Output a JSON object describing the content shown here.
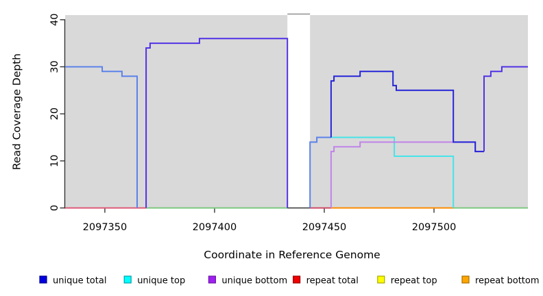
{
  "chart_data": {
    "type": "line",
    "title": "",
    "xlabel": "Coordinate in Reference Genome",
    "ylabel": "Read Coverage Depth",
    "xlim": [
      2097331.9,
      2097542.8
    ],
    "ylim": [
      0,
      41
    ],
    "grid": false,
    "legend_position": "bottom",
    "x_ticks": [
      2097350,
      2097400,
      2097450,
      2097500
    ],
    "y_ticks": [
      0,
      10,
      20,
      30,
      40
    ],
    "masked_region": [
      2097433,
      2097444
    ],
    "colors": {
      "plot_bg": "#d9d9d9",
      "axis": "#333333",
      "mask_fill": "#ffffff",
      "mask_border": "#8f8f8f"
    },
    "series": [
      {
        "name": "unique total",
        "color": "#0000e0",
        "steps": [
          [
            2097332,
            30
          ],
          [
            2097349,
            29
          ],
          [
            2097358,
            28
          ],
          [
            2097365,
            0
          ],
          [
            2097369,
            34
          ],
          [
            2097371,
            35
          ],
          [
            2097393,
            36
          ],
          [
            2097433,
            0
          ],
          [
            2097444,
            14
          ],
          [
            2097447,
            15
          ],
          [
            2097453,
            27
          ],
          [
            2097454,
            28
          ],
          [
            2097466,
            29
          ],
          [
            2097481,
            26
          ],
          [
            2097483,
            25
          ],
          [
            2097509,
            14
          ],
          [
            2097519,
            12
          ],
          [
            2097523,
            28
          ],
          [
            2097526,
            29
          ],
          [
            2097531,
            30
          ],
          [
            2097543,
            30
          ]
        ]
      },
      {
        "name": "unique top",
        "color": "#00ffff",
        "steps": [
          [
            2097332,
            30
          ],
          [
            2097349,
            29
          ],
          [
            2097358,
            28
          ],
          [
            2097365,
            0
          ],
          [
            2097444,
            14
          ],
          [
            2097447,
            15
          ],
          [
            2097481,
            12
          ],
          [
            2097483,
            11
          ],
          [
            2097509,
            0
          ],
          [
            2097543,
            0
          ]
        ]
      },
      {
        "name": "unique bottom",
        "color": "#a020f0",
        "steps": [
          [
            2097332,
            0
          ],
          [
            2097369,
            34
          ],
          [
            2097371,
            35
          ],
          [
            2097393,
            36
          ],
          [
            2097433,
            0
          ],
          [
            2097453,
            12
          ],
          [
            2097454,
            13
          ],
          [
            2097466,
            14
          ],
          [
            2097519,
            12
          ],
          [
            2097523,
            28
          ],
          [
            2097526,
            29
          ],
          [
            2097531,
            30
          ],
          [
            2097543,
            30
          ]
        ]
      },
      {
        "name": "repeat total",
        "color": "#f00000",
        "steps": [
          [
            2097332,
            0
          ],
          [
            2097543,
            0
          ]
        ]
      },
      {
        "name": "repeat top",
        "color": "#ffff00",
        "steps": [
          [
            2097332,
            0
          ],
          [
            2097543,
            0
          ]
        ]
      },
      {
        "name": "repeat bottom",
        "color": "#ffa500",
        "steps": [
          [
            2097332,
            0
          ],
          [
            2097543,
            0
          ]
        ]
      }
    ],
    "render_lines": [
      {
        "name": "baseline-repeat-total-left",
        "color": "#e05a78",
        "points": [
          [
            2097331.9,
            0
          ],
          [
            2097368.8,
            0
          ]
        ]
      },
      {
        "name": "baseline-mixed-left",
        "color": "#7dc87f",
        "points": [
          [
            2097368.8,
            0
          ],
          [
            2097433.2,
            0
          ]
        ]
      },
      {
        "name": "baseline-repeat-total-mid",
        "color": "#d04a66",
        "points": [
          [
            2097443.5,
            0
          ],
          [
            2097453.1,
            0
          ]
        ]
      },
      {
        "name": "baseline-repeat-bottom",
        "color": "#ff8c00",
        "points": [
          [
            2097453.1,
            0
          ],
          [
            2097508.8,
            0
          ]
        ]
      },
      {
        "name": "baseline-mixed-right",
        "color": "#7dc87f",
        "points": [
          [
            2097508.8,
            0
          ],
          [
            2097542.8,
            0
          ]
        ]
      },
      {
        "name": "unique-top-right",
        "color": "#45e4e8",
        "points": [
          [
            2097446.6,
            15
          ],
          [
            2097481.9,
            15
          ],
          [
            2097481.9,
            11
          ],
          [
            2097508.8,
            11
          ],
          [
            2097508.8,
            0
          ]
        ]
      },
      {
        "name": "unique-bottom-right-low",
        "color": "#c083e8",
        "points": [
          [
            2097453.1,
            0
          ],
          [
            2097453.1,
            12
          ],
          [
            2097454.4,
            12
          ],
          [
            2097454.4,
            13
          ],
          [
            2097466.3,
            13
          ],
          [
            2097466.3,
            14
          ],
          [
            2097518.8,
            14
          ],
          [
            2097518.8,
            12
          ],
          [
            2097522.8,
            12
          ]
        ]
      },
      {
        "name": "unique-total-left",
        "color": "#5b82ea",
        "points": [
          [
            2097331.9,
            30
          ],
          [
            2097348.8,
            30
          ],
          [
            2097348.8,
            29
          ],
          [
            2097357.8,
            29
          ],
          [
            2097357.8,
            28
          ],
          [
            2097364.7,
            28
          ],
          [
            2097364.7,
            0
          ]
        ]
      },
      {
        "name": "unique-total-right-rise",
        "color": "#5b82ea",
        "points": [
          [
            2097443.5,
            0
          ],
          [
            2097443.5,
            14
          ],
          [
            2097446.6,
            14
          ],
          [
            2097446.6,
            15
          ],
          [
            2097453.1,
            15
          ]
        ]
      },
      {
        "name": "unique-total-right",
        "color": "#2424d8",
        "points": [
          [
            2097453.1,
            15
          ],
          [
            2097453.1,
            27
          ],
          [
            2097454.4,
            27
          ],
          [
            2097454.4,
            28
          ],
          [
            2097466.3,
            28
          ],
          [
            2097466.3,
            29
          ],
          [
            2097481.3,
            29
          ],
          [
            2097481.3,
            26
          ],
          [
            2097482.8,
            26
          ],
          [
            2097482.8,
            25
          ],
          [
            2097508.8,
            25
          ],
          [
            2097508.8,
            14
          ],
          [
            2097518.8,
            14
          ],
          [
            2097518.8,
            12
          ],
          [
            2097522.8,
            12
          ]
        ]
      },
      {
        "name": "unique-bottom-left-plateau",
        "color": "#5130e6",
        "points": [
          [
            2097368.8,
            0
          ],
          [
            2097368.8,
            34
          ],
          [
            2097370.6,
            34
          ],
          [
            2097370.6,
            35
          ],
          [
            2097393.1,
            35
          ],
          [
            2097393.1,
            36
          ],
          [
            2097433.2,
            36
          ],
          [
            2097433.2,
            0
          ]
        ]
      },
      {
        "name": "unique-bottom-right-high",
        "color": "#5130e6",
        "points": [
          [
            2097522.8,
            12
          ],
          [
            2097522.8,
            28
          ],
          [
            2097525.9,
            28
          ],
          [
            2097525.9,
            29
          ],
          [
            2097530.9,
            29
          ],
          [
            2097530.9,
            30
          ],
          [
            2097542.8,
            30
          ]
        ]
      }
    ],
    "legend": [
      {
        "label": "unique total",
        "color": "#0000e0",
        "border": "#000090"
      },
      {
        "label": "unique top",
        "color": "#00ffff",
        "border": "#00a0a8"
      },
      {
        "label": "unique bottom",
        "color": "#a020f0",
        "border": "#6a14a8"
      },
      {
        "label": "repeat total",
        "color": "#f00000",
        "border": "#980000"
      },
      {
        "label": "repeat top",
        "color": "#ffff00",
        "border": "#a8a800"
      },
      {
        "label": "repeat bottom",
        "color": "#ffa500",
        "border": "#a86e00"
      }
    ]
  }
}
